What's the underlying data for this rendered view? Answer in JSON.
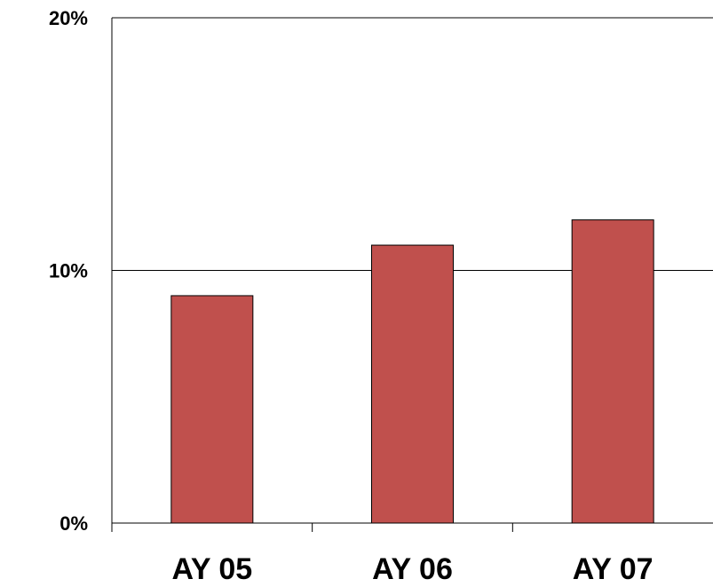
{
  "chart_data": {
    "type": "bar",
    "categories": [
      "AY 05",
      "AY 06",
      "AY 07"
    ],
    "values": [
      9,
      11,
      12
    ],
    "ylim": [
      0,
      20
    ],
    "yticks": [
      0,
      10,
      20
    ],
    "ytick_labels": [
      "0%",
      "10%",
      "20%"
    ],
    "gridlines": true,
    "bar_color": "#C0504D",
    "title": "",
    "xlabel": "",
    "ylabel": ""
  }
}
